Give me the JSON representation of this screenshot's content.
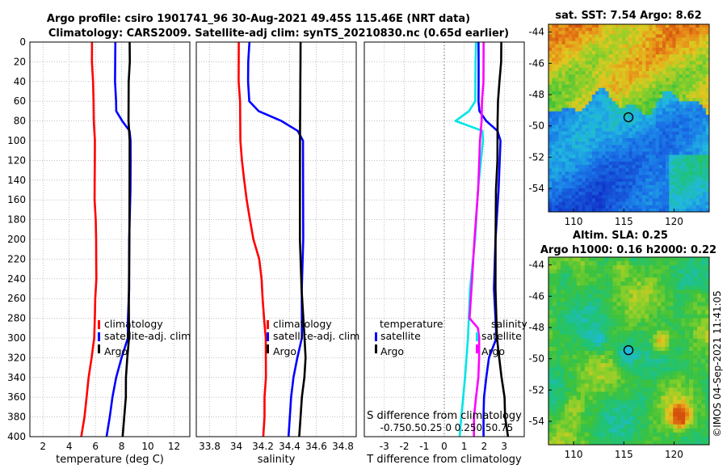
{
  "header": {
    "line1": "Argo profile: csiro 1901741_96 30-Aug-2021 49.45S 115.46E (NRT data)",
    "line2": "Climatology: CARS2009. Satellite-adj clim: synTS_20210830.nc (0.65d earlier)"
  },
  "colors": {
    "climatology": "#ff0000",
    "satellite": "#0000ff",
    "argo": "#000000",
    "salt_diff_satellite": "#00e5e5",
    "salt_diff_clim": "#ff00ff"
  },
  "chart_data": [
    {
      "type": "line",
      "id": "temperature",
      "xlabel": "temperature (deg C)",
      "ylabel": "",
      "xlim": [
        1,
        13.2
      ],
      "ylim": [
        400,
        0
      ],
      "xticks": [
        "2",
        "4",
        "6",
        "8",
        "10",
        "12"
      ],
      "yticks": [
        "0",
        "20",
        "40",
        "60",
        "80",
        "100",
        "120",
        "140",
        "160",
        "180",
        "200",
        "220",
        "240",
        "260",
        "280",
        "300",
        "320",
        "340",
        "360",
        "380",
        "400"
      ],
      "legend": [
        "climatology",
        "satellite-adj. clim",
        "Argo"
      ],
      "series": [
        {
          "name": "climatology",
          "color": "#ff0000",
          "depth": [
            0,
            20,
            40,
            60,
            80,
            100,
            120,
            140,
            160,
            180,
            200,
            220,
            240,
            260,
            280,
            300,
            320,
            340,
            360,
            380,
            400
          ],
          "values": [
            5.75,
            5.75,
            5.8,
            5.85,
            5.9,
            5.95,
            5.95,
            5.95,
            5.95,
            6.0,
            6.05,
            6.05,
            6.05,
            6.0,
            5.95,
            5.9,
            5.7,
            5.5,
            5.3,
            5.15,
            4.9
          ]
        },
        {
          "name": "satellite-adj. clim",
          "color": "#0000ff",
          "depth": [
            0,
            20,
            40,
            60,
            70,
            80,
            90,
            100,
            120,
            150,
            200,
            250,
            280,
            300,
            320,
            340,
            360,
            380,
            400
          ],
          "values": [
            7.5,
            7.5,
            7.5,
            7.55,
            7.6,
            8.05,
            8.6,
            8.7,
            8.7,
            8.65,
            8.6,
            8.55,
            8.5,
            8.5,
            8.0,
            7.6,
            7.3,
            7.1,
            6.85
          ]
        },
        {
          "name": "Argo",
          "color": "#000000",
          "depth": [
            0,
            20,
            40,
            60,
            80,
            100,
            140,
            200,
            260,
            300,
            320,
            340,
            360,
            380,
            400
          ],
          "values": [
            8.6,
            8.6,
            8.55,
            8.55,
            8.55,
            8.6,
            8.6,
            8.6,
            8.55,
            8.55,
            8.45,
            8.35,
            8.3,
            8.2,
            8.1
          ]
        }
      ]
    },
    {
      "type": "line",
      "id": "salinity",
      "xlabel": "salinity",
      "xlim": [
        33.7,
        34.9
      ],
      "ylim": [
        400,
        0
      ],
      "xticks": [
        "33.8",
        "34",
        "34.2",
        "34.4",
        "34.6",
        "34.8"
      ],
      "legend": [
        "climatology",
        "satellite-adj. clim",
        "Argo"
      ],
      "series": [
        {
          "name": "climatology",
          "color": "#ff0000",
          "depth": [
            0,
            20,
            40,
            60,
            80,
            100,
            120,
            140,
            160,
            180,
            200,
            220,
            240,
            260,
            280,
            300,
            320,
            340,
            360,
            380,
            400
          ],
          "values": [
            34.02,
            34.02,
            34.02,
            34.03,
            34.03,
            34.03,
            34.04,
            34.06,
            34.08,
            34.1,
            34.13,
            34.17,
            34.19,
            34.2,
            34.21,
            34.22,
            34.22,
            34.22,
            34.21,
            34.21,
            34.2
          ]
        },
        {
          "name": "satellite-adj. clim",
          "color": "#0000ff",
          "depth": [
            0,
            20,
            40,
            60,
            70,
            80,
            90,
            100,
            140,
            200,
            250,
            300,
            320,
            340,
            360,
            380,
            400
          ],
          "values": [
            34.1,
            34.09,
            34.09,
            34.1,
            34.17,
            34.34,
            34.46,
            34.5,
            34.5,
            34.5,
            34.49,
            34.49,
            34.46,
            34.43,
            34.41,
            34.4,
            34.39
          ]
        },
        {
          "name": "Argo",
          "color": "#000000",
          "depth": [
            0,
            20,
            40,
            60,
            80,
            100,
            150,
            200,
            250,
            300,
            320,
            340,
            360,
            380,
            400
          ],
          "values": [
            34.48,
            34.48,
            34.48,
            34.48,
            34.48,
            34.48,
            34.48,
            34.48,
            34.49,
            34.51,
            34.52,
            34.51,
            34.49,
            34.48,
            34.47
          ]
        }
      ]
    },
    {
      "type": "line",
      "id": "differences",
      "xlabel": "T difference from climatology",
      "xlabel_top": "S difference from climatology",
      "xlim": [
        -4,
        4
      ],
      "ylim": [
        400,
        0
      ],
      "xticks": [
        "-3",
        "-2",
        "-1",
        "0",
        "1",
        "2",
        "3"
      ],
      "top_ticks": [
        "-0.75",
        "-0.5",
        "-0.25",
        "0",
        "0.25",
        "0.5",
        "0.75"
      ],
      "top_ticks_text": "-0.750.50.25 0 0.250.50.75",
      "legend_temperature_title": "temperature",
      "legend_salinity_title": "salinity",
      "legend_temperature": [
        "satellite",
        "Argo"
      ],
      "legend_salinity": [
        "satellite",
        "Argo"
      ],
      "series": [
        {
          "name": "T satellite",
          "color": "#0000ff",
          "depth": [
            0,
            20,
            40,
            60,
            70,
            80,
            90,
            100,
            150,
            200,
            250,
            300,
            320,
            340,
            360,
            380,
            400
          ],
          "values": [
            1.7,
            1.7,
            1.7,
            1.7,
            1.75,
            2.1,
            2.65,
            2.8,
            2.7,
            2.55,
            2.5,
            2.6,
            2.25,
            2.1,
            2.0,
            1.95,
            1.95
          ]
        },
        {
          "name": "T Argo",
          "color": "#000000",
          "depth": [
            0,
            20,
            40,
            60,
            80,
            100,
            120,
            150,
            200,
            250,
            300,
            320,
            340,
            360,
            380,
            400
          ],
          "values": [
            2.85,
            2.85,
            2.75,
            2.7,
            2.65,
            2.65,
            2.65,
            2.6,
            2.55,
            2.55,
            2.65,
            2.75,
            2.85,
            3.0,
            3.05,
            3.2
          ]
        },
        {
          "name": "S satellite",
          "color": "#00e5e5",
          "depth": [
            0,
            20,
            40,
            60,
            70,
            80,
            90,
            100,
            150,
            200,
            250,
            300,
            340,
            380,
            400
          ],
          "values": [
            1.6,
            1.55,
            1.55,
            1.55,
            1.25,
            0.55,
            1.9,
            1.95,
            1.7,
            1.55,
            1.3,
            1.2,
            1.05,
            0.85,
            0.75
          ]
        },
        {
          "name": "S Argo",
          "color": "#ff00ff",
          "depth": [
            0,
            20,
            40,
            60,
            80,
            100,
            150,
            200,
            250,
            280,
            290,
            300,
            320,
            340,
            360,
            380,
            400
          ],
          "values": [
            1.95,
            1.95,
            1.95,
            1.9,
            1.85,
            1.8,
            1.7,
            1.5,
            1.35,
            1.25,
            1.7,
            1.75,
            1.75,
            1.7,
            1.6,
            1.5,
            1.5
          ]
        }
      ]
    },
    {
      "type": "heatmap",
      "id": "sst-map",
      "title": "sat. SST: 7.54 Argo: 8.62",
      "xlim": [
        107.5,
        123.5
      ],
      "ylim": [
        -55.5,
        -43.5
      ],
      "xticks": [
        "110",
        "115",
        "120"
      ],
      "yticks": [
        "-44",
        "-46",
        "-48",
        "-50",
        "-52",
        "-54"
      ],
      "marker": {
        "lon": 115.46,
        "lat": -49.45
      }
    },
    {
      "type": "heatmap",
      "id": "sla-map",
      "title_line1": "Altim. SLA: 0.25",
      "title_line2": "Argo h1000: 0.16 h2000: 0.22",
      "xlim": [
        107.5,
        123.5
      ],
      "ylim": [
        -55.5,
        -43.5
      ],
      "xticks": [
        "110",
        "115",
        "120"
      ],
      "yticks": [
        "-44",
        "-46",
        "-48",
        "-50",
        "-52",
        "-54"
      ],
      "marker": {
        "lon": 115.46,
        "lat": -49.45
      }
    }
  ],
  "watermark": "©IMOS 04-Sep-2021 11:41:05"
}
